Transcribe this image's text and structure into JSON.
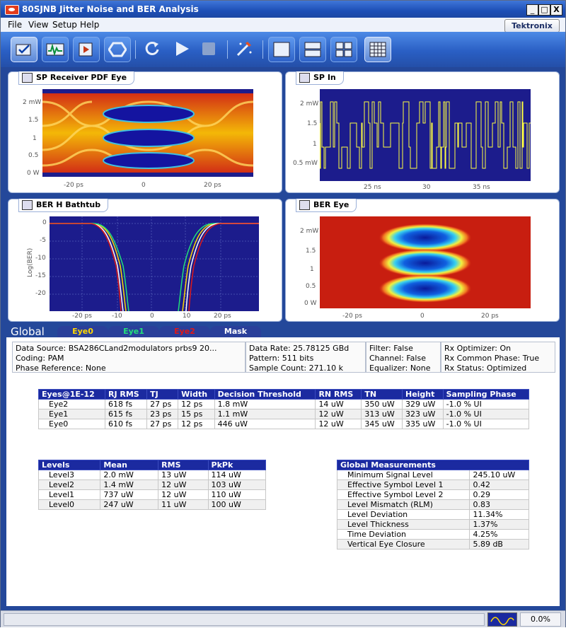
{
  "window": {
    "title": "80SJNB Jitter Noise and BER Analysis",
    "controls": [
      "_",
      "□",
      "X"
    ]
  },
  "menu": [
    "File",
    "View",
    "Setup",
    "Help"
  ],
  "brand": "Tektronix",
  "toolbar": {
    "icons": [
      "checklist-icon",
      "waveform-icon",
      "export-icon",
      "hexagon-icon",
      "refresh-icon",
      "run-icon",
      "stop-icon",
      "wizard-icon",
      "layout-single-icon",
      "layout-rows-icon",
      "layout-quad-icon",
      "layout-grid-icon"
    ]
  },
  "panels": {
    "pdf_eye": {
      "title": "SP Receiver PDF Eye",
      "y_ticks": [
        "2 mW",
        "1.5",
        "1",
        "0.5",
        "0 W"
      ],
      "x_ticks": [
        "-20 ps",
        "0",
        "20 ps"
      ]
    },
    "sp_in": {
      "title": "SP In",
      "y_ticks": [
        "2 mW",
        "1.5",
        "1",
        "0.5 mW"
      ],
      "x_ticks": [
        "25 ns",
        "30",
        "35 ns"
      ]
    },
    "bathtub": {
      "title": "BER H Bathtub",
      "y_label": "Log(BER)",
      "y_ticks": [
        "0",
        "-5",
        "-10",
        "-15",
        "-20"
      ],
      "x_ticks": [
        "-20 ps",
        "-10",
        "0",
        "10",
        "20 ps"
      ]
    },
    "ber_eye": {
      "title": "BER Eye",
      "y_ticks": [
        "2 mW",
        "1.5",
        "1",
        "0.5",
        "0 W"
      ],
      "x_ticks": [
        "-20 ps",
        "0",
        "20 ps"
      ]
    }
  },
  "global": {
    "title": "Global",
    "tabs": [
      {
        "label": "Eye0",
        "color": "#ffd800"
      },
      {
        "label": "Eye1",
        "color": "#22e07a"
      },
      {
        "label": "Eye2",
        "color": "#e01818"
      },
      {
        "label": "Mask",
        "color": "#ffffff"
      }
    ]
  },
  "info": {
    "col1": [
      "Data Source: BSA286CLand2modulators prbs9 20...",
      "Coding: PAM",
      "Phase Reference: None"
    ],
    "col2": [
      "Data Rate: 25.78125 GBd",
      "Pattern: 511 bits",
      "Sample Count: 271.10 k"
    ],
    "col3": [
      "Filter: False",
      "Channel: False",
      "Equalizer: None"
    ],
    "col4": [
      "Rx Optimizer: On",
      "Rx Common Phase: True",
      "Rx Status: Optimized"
    ]
  },
  "eyes_table": {
    "headers": [
      "Eyes@1E-12",
      "RJ RMS",
      "TJ",
      "Width",
      "Decision Threshold",
      "RN RMS",
      "TN",
      "Height",
      "Sampling Phase"
    ],
    "rows": [
      [
        "Eye2",
        "618 fs",
        "27 ps",
        "12 ps",
        "1.8 mW",
        "14 uW",
        "350 uW",
        "329 uW",
        "-1.0 % UI"
      ],
      [
        "Eye1",
        "615 fs",
        "23 ps",
        "15 ps",
        "1.1 mW",
        "12 uW",
        "313 uW",
        "323 uW",
        "-1.0 % UI"
      ],
      [
        "Eye0",
        "610 fs",
        "27 ps",
        "12 ps",
        "446 uW",
        "12 uW",
        "345 uW",
        "335 uW",
        "-1.0 % UI"
      ]
    ]
  },
  "levels_table": {
    "headers": [
      "Levels",
      "Mean",
      "RMS",
      "PkPk"
    ],
    "rows": [
      [
        "Level3",
        "2.0 mW",
        "13 uW",
        "114 uW"
      ],
      [
        "Level2",
        "1.4 mW",
        "12 uW",
        "103 uW"
      ],
      [
        "Level1",
        "737 uW",
        "12 uW",
        "110 uW"
      ],
      [
        "Level0",
        "247 uW",
        "11 uW",
        "100 uW"
      ]
    ]
  },
  "global_table": {
    "header": "Global Measurements",
    "rows": [
      [
        "Minimum Signal Level",
        "245.10 uW"
      ],
      [
        "Effective Symbol Level 1",
        "0.42"
      ],
      [
        "Effective Symbol Level 2",
        "0.29"
      ],
      [
        "Level Mismatch (RLM)",
        "0.83"
      ],
      [
        "Level Deviation",
        "11.34%"
      ],
      [
        "Level Thickness",
        "1.37%"
      ],
      [
        "Time Deviation",
        "4.25%"
      ],
      [
        "Vertical Eye Closure",
        "5.89 dB"
      ]
    ]
  },
  "status": {
    "progress": "0.0%"
  }
}
